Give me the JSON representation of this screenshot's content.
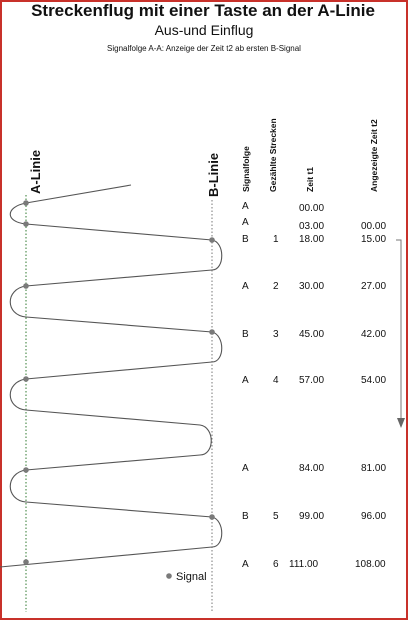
{
  "title": "Streckenflug mit einer Taste an der A-Linie",
  "subtitle": "Aus-und Einflug",
  "caption": "Signalfolge A-A: Anzeige der Zeit t2 ab ersten B-Signal",
  "line_a_label": "A-Linie",
  "line_b_label": "B-Linie",
  "columns": {
    "signalfolge": "Signalfolge",
    "gezaehlte": "Gezählte Strecken",
    "zeit_t1": "Zeit t1",
    "angezeigt_t2": "Angezeigte Zeit t2"
  },
  "rows": [
    {
      "signal": "A",
      "strecke": "",
      "t1": "00.00",
      "t2": ""
    },
    {
      "signal": "A",
      "strecke": "",
      "t1": "03.00",
      "t2": "00.00"
    },
    {
      "signal": "B",
      "strecke": "1",
      "t1": "18.00",
      "t2": "15.00"
    },
    {
      "signal": "A",
      "strecke": "2",
      "t1": "30.00",
      "t2": "27.00"
    },
    {
      "signal": "B",
      "strecke": "3",
      "t1": "45.00",
      "t2": "42.00"
    },
    {
      "signal": "A",
      "strecke": "4",
      "t1": "57.00",
      "t2": "54.00"
    },
    {
      "signal": "A",
      "strecke": "",
      "t1": "84.00",
      "t2": "81.00"
    },
    {
      "signal": "B",
      "strecke": "5",
      "t1": "99.00",
      "t2": "96.00"
    },
    {
      "signal": "A",
      "strecke": "6",
      "t1": "111.00",
      "t2": "108.00"
    }
  ],
  "legend": "Signal",
  "colors": {
    "border": "#c8312a",
    "path": "#555555",
    "signal_dot": "#7a7a7a",
    "line_a": "#2f7a2f",
    "line_b": "#777777"
  }
}
